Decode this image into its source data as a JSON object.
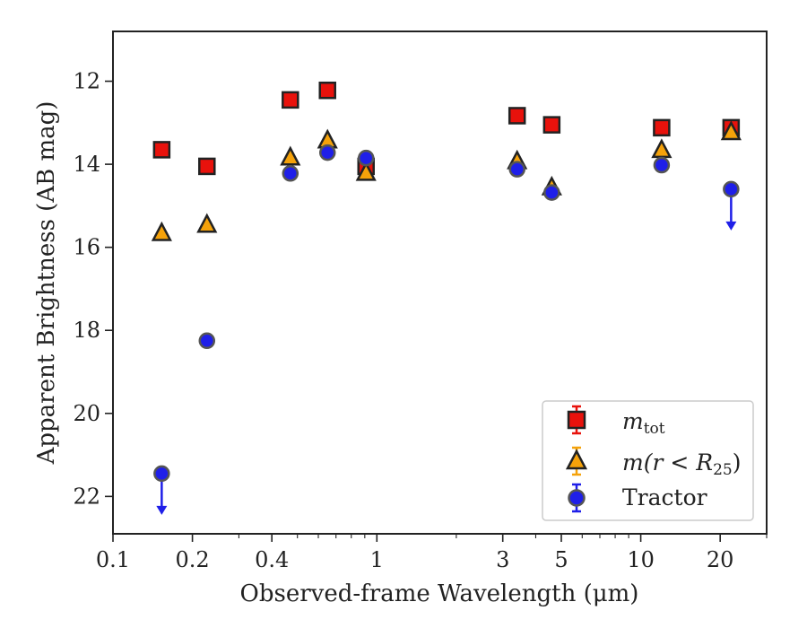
{
  "chart_data": {
    "type": "scatter",
    "xlabel": "Observed-frame Wavelength (μm)",
    "ylabel": "Apparent Brightness (AB mag)",
    "x_scale": "log",
    "xlim": [
      0.1,
      30
    ],
    "ylim": [
      22.9,
      10.8
    ],
    "y_inverted": true,
    "x_ticks": [
      0.1,
      0.2,
      0.4,
      1,
      3,
      5,
      10,
      20
    ],
    "x_tick_labels": [
      "0.1",
      "0.2",
      "0.4",
      "1",
      "3",
      "5",
      "10",
      "20"
    ],
    "y_ticks": [
      12,
      14,
      16,
      18,
      20,
      22
    ],
    "y_tick_labels": [
      "12",
      "14",
      "16",
      "18",
      "20",
      "22"
    ],
    "grid": false,
    "legend_position": "lower-right",
    "series": [
      {
        "key": "mtot",
        "name": "m_tot",
        "marker": "square",
        "color": "#e8120c",
        "edge_color": "#222222",
        "errorbar_color": "#e8120c",
        "x": [
          0.153,
          0.227,
          0.47,
          0.65,
          0.91,
          3.4,
          4.6,
          12.0,
          22.0
        ],
        "y": [
          13.65,
          14.05,
          12.45,
          12.22,
          14.05,
          12.83,
          13.05,
          13.12,
          13.12
        ]
      },
      {
        "key": "m_r25",
        "name": "m(r < R25)",
        "marker": "triangle",
        "color": "#f5a20a",
        "edge_color": "#222222",
        "errorbar_color": "#f5a20a",
        "x": [
          0.153,
          0.227,
          0.47,
          0.65,
          0.91,
          3.4,
          4.6,
          12.0,
          22.0
        ],
        "y": [
          15.65,
          15.45,
          13.83,
          13.42,
          14.2,
          13.92,
          14.55,
          13.65,
          13.22
        ]
      },
      {
        "key": "tractor",
        "name": "Tractor",
        "marker": "circle",
        "color": "#1f1fe8",
        "edge_color": "#555555",
        "errorbar_color": "#1f1fe8",
        "x": [
          0.153,
          0.227,
          0.47,
          0.65,
          0.91,
          3.4,
          4.6,
          12.0,
          22.0
        ],
        "y": [
          21.45,
          18.25,
          14.22,
          13.72,
          13.85,
          14.12,
          14.68,
          14.02,
          14.6
        ],
        "upper_limits": [
          true,
          false,
          false,
          false,
          false,
          false,
          false,
          false,
          true
        ]
      }
    ]
  },
  "legend": {
    "mtot_main": "m",
    "mtot_sub": "tot",
    "mr25_pre": "m",
    "mr25_mid": "(r < R",
    "mr25_sub": "25",
    "mr25_post": ")",
    "tractor": "Tractor"
  }
}
